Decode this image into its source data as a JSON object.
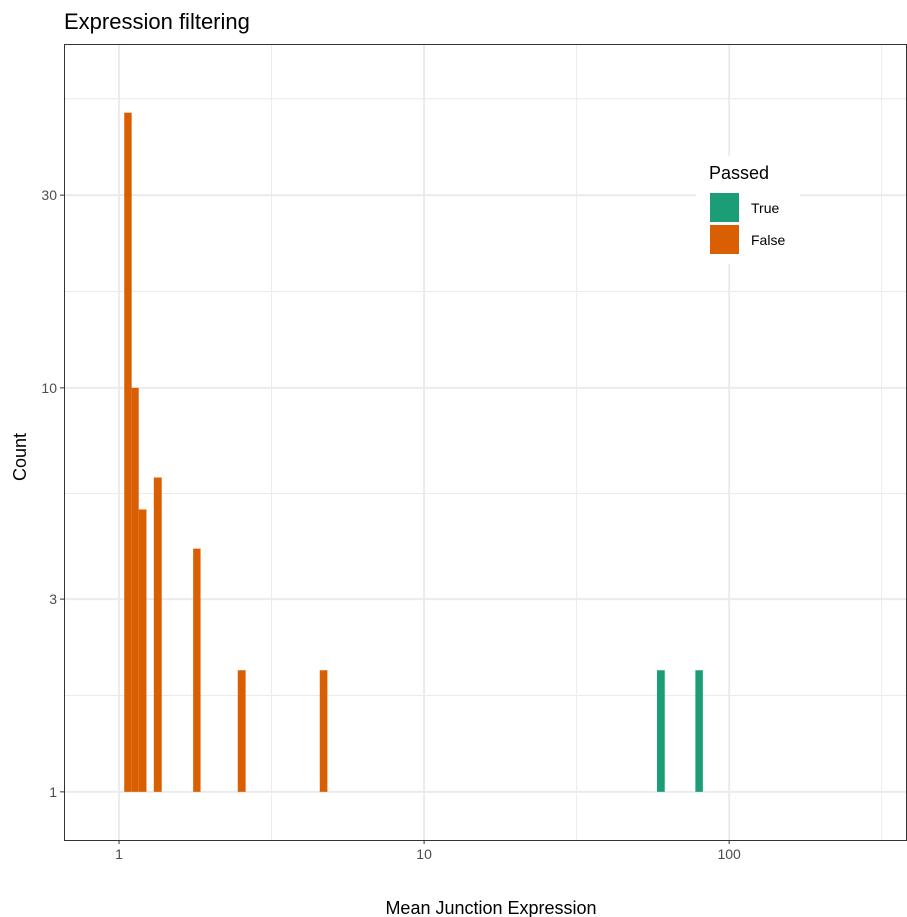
{
  "chart_data": {
    "type": "bar",
    "title": "Expression filtering",
    "xlabel": "Mean Junction Expression",
    "ylabel": "Count",
    "x_scale": "log10",
    "y_scale": "log10",
    "xlim": [
      0.66,
      380
    ],
    "ylim": [
      0.76,
      71
    ],
    "x_ticks": [
      {
        "value": 1,
        "label": "1"
      },
      {
        "value": 10,
        "label": "10"
      },
      {
        "value": 100,
        "label": "100"
      }
    ],
    "y_ticks": [
      {
        "value": 1,
        "label": "1"
      },
      {
        "value": 3,
        "label": "3"
      },
      {
        "value": 10,
        "label": "10"
      },
      {
        "value": 30,
        "label": "30"
      }
    ],
    "grid": true,
    "legend": {
      "title": "Passed",
      "position": "top-right",
      "entries": [
        {
          "label": "True",
          "color": "#1b9e77"
        },
        {
          "label": "False",
          "color": "#d95f02"
        }
      ]
    },
    "series": [
      {
        "name": "False",
        "color": "#d95f02",
        "bars": [
          {
            "x0": 1.04,
            "x1": 1.1,
            "count": 48
          },
          {
            "x0": 1.1,
            "x1": 1.16,
            "count": 10
          },
          {
            "x0": 1.16,
            "x1": 1.23,
            "count": 5
          },
          {
            "x0": 1.3,
            "x1": 1.38,
            "count": 6
          },
          {
            "x0": 1.75,
            "x1": 1.85,
            "count": 4
          },
          {
            "x0": 2.45,
            "x1": 2.6,
            "count": 2
          },
          {
            "x0": 4.55,
            "x1": 4.82,
            "count": 2
          }
        ]
      },
      {
        "name": "True",
        "color": "#1b9e77",
        "bars": [
          {
            "x0": 58.0,
            "x1": 61.5,
            "count": 2
          },
          {
            "x0": 77.5,
            "x1": 82.0,
            "count": 2
          }
        ]
      }
    ]
  }
}
